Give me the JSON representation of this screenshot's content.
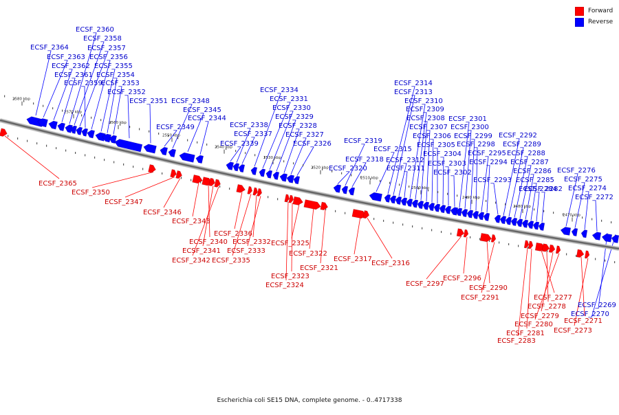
{
  "caption": "Escherichia coli SE15 DNA, complete genome. - 0..4717338",
  "legend": {
    "forward_label": "Forward",
    "reverse_label": "Reverse",
    "forward_color": "#ff0000",
    "reverse_color": "#0000ff"
  },
  "colors": {
    "forward_label": "#cc0000",
    "reverse_label": "#0000cc",
    "backbone": "#666666"
  },
  "ticks": [
    "2580 kbp",
    "2570 kbp",
    "2560 kbp",
    "2550 kbp",
    "2540 kbp",
    "2530 kbp",
    "2520 kbp",
    "2510 kbp",
    "2500 kbp",
    "2490 kbp",
    "2480 kbp",
    "2470 kbp"
  ],
  "genes": {
    "reverse": [
      "ECSF_2364",
      "ECSF_2363",
      "ECSF_2362",
      "ECSF_2361",
      "ECSF_2360",
      "ECSF_2358",
      "ECSF_2357",
      "ECSF_2359",
      "ECSF_2356",
      "ECSF_2355",
      "ECSF_2354",
      "ECSF_2353",
      "ECSF_2352",
      "ECSF_2351",
      "ECSF_2349",
      "ECSF_2348",
      "ECSF_2345",
      "ECSF_2344",
      "ECSF_2339",
      "ECSF_2338",
      "ECSF_2337",
      "ECSF_2334",
      "ECSF_2331",
      "ECSF_2330",
      "ECSF_2329",
      "ECSF_2328",
      "ECSF_2327",
      "ECSF_2326",
      "ECSF_2320",
      "ECSF_2319",
      "ECSF_2318",
      "ECSF_2315",
      "ECSF_2314",
      "ECSF_2313",
      "ECSF_2312",
      "ECSF_2311",
      "ECSF_2310",
      "ECSF_2309",
      "ECSF_2308",
      "ECSF_2307",
      "ECSF_2306",
      "ECSF_2305",
      "ECSF_2304",
      "ECSF_2303",
      "ECSF_2302",
      "ECSF_2301",
      "ECSF_2300",
      "ECSF_2299",
      "ECSF_2298",
      "ECSF_2295",
      "ECSF_2294",
      "ECSF_2293",
      "ECSF_2292",
      "ECSF_2289",
      "ECSF_2288",
      "ECSF_2287",
      "ECSF_2286",
      "ECSF_2285",
      "ECSF_2284",
      "ECSF_2282",
      "ECSF_2276",
      "ECSF_2275",
      "ECSF_2274",
      "ECSF_2272",
      "ECSF_2269",
      "ECSF_2270"
    ],
    "forward": [
      "ECSF_2365",
      "ECSF_2350",
      "ECSF_2347",
      "ECSF_2346",
      "ECSF_2343",
      "ECSF_2340",
      "ECSF_2341",
      "ECSF_2342",
      "ECSF_2336",
      "ECSF_2332",
      "ECSF_2333",
      "ECSF_2335",
      "ECSF_2325",
      "ECSF_2322",
      "ECSF_2321",
      "ECSF_2323",
      "ECSF_2324",
      "ECSF_2317",
      "ECSF_2316",
      "ECSF_2297",
      "ECSF_2296",
      "ECSF_2290",
      "ECSF_2291",
      "ECSF_2277",
      "ECSF_2278",
      "ECSF_2279",
      "ECSF_2280",
      "ECSF_2281",
      "ECSF_2283",
      "ECSF_2271",
      "ECSF_2273"
    ]
  }
}
